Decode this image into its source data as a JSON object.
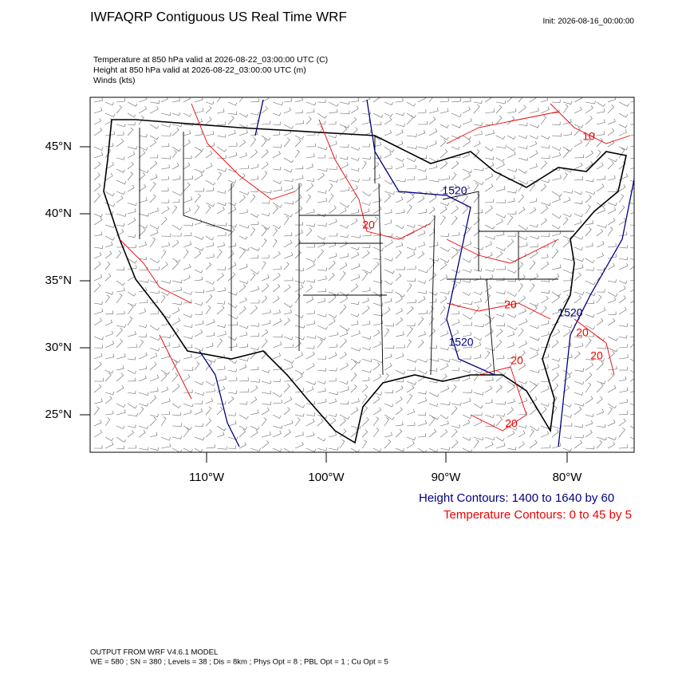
{
  "header": {
    "title": "IWFAQRP Contiguous US Real Time WRF",
    "init": "Init: 2026-08-16_00:00:00"
  },
  "fields": [
    "Temperature at 850 hPa valid at 2026-08-22_03:00:00 UTC   (C)",
    "Height at 850 hPa valid at 2026-08-22_03:00:00 UTC   (m)",
    "Winds   (kts)"
  ],
  "map": {
    "lat_labels": [
      "45°N",
      "40°N",
      "35°N",
      "30°N",
      "25°N"
    ],
    "lon_labels": [
      "110°W",
      "100°W",
      "90°W",
      "80°W"
    ],
    "height_contour_labels": [
      "1520",
      "1520",
      "1520"
    ],
    "temperature_contour_labels": [
      "20",
      "20",
      "20",
      "20",
      "20",
      "20",
      "10"
    ]
  },
  "legend": {
    "height": "Height Contours: 1400 to 1640 by 60",
    "temperature": "Temperature Contours: 0 to 45 by 5"
  },
  "footer": [
    "OUTPUT FROM WRF V4.6.1 MODEL",
    "WE = 580 ; SN = 380 ; Levels = 38 ; Dis = 8km ; Phys Opt = 8 ; PBL Opt = 1 ; Cu Opt = 5"
  ]
}
